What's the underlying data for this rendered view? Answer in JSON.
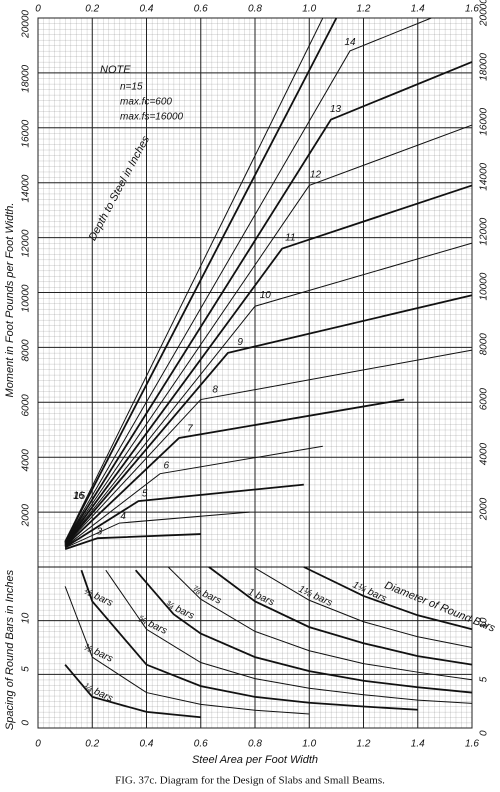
{
  "chart_data": [
    {
      "type": "line",
      "y_label": "Moment in Foot Pounds per Foot Width.",
      "annotation": "Depth to Steel in Inches",
      "note": [
        "NOTE",
        "n=15",
        "max.fc=600",
        "max.fs=16000"
      ],
      "xlim": [
        0,
        1.6
      ],
      "xticks": [
        0,
        0.2,
        0.4,
        0.6,
        0.8,
        {
          "value": 1,
          "label": "1.0"
        },
        1.2,
        1.4,
        1.6
      ],
      "ylim": [
        0,
        20000
      ],
      "yticks": [
        2000,
        4000,
        6000,
        8000,
        10000,
        12000,
        14000,
        16000,
        18000,
        20000
      ],
      "grid": true,
      "series": [
        {
          "name": "3",
          "color": "#111",
          "x": [
            0.1,
            0.22,
            0.6
          ],
          "values": [
            650,
            1050,
            1200
          ]
        },
        {
          "name": "4",
          "color": "#111",
          "x": [
            0.1,
            0.3,
            0.78
          ],
          "values": [
            700,
            1600,
            2000
          ]
        },
        {
          "name": "5",
          "color": "#111",
          "x": [
            0.1,
            0.37,
            0.98
          ],
          "values": [
            720,
            2400,
            3000
          ]
        },
        {
          "name": "6",
          "color": "#111",
          "x": [
            0.1,
            0.45,
            1.05
          ],
          "values": [
            740,
            3400,
            4400
          ]
        },
        {
          "name": "7",
          "color": "#111",
          "x": [
            0.1,
            0.52,
            1.35
          ],
          "values": [
            760,
            4700,
            6100
          ]
        },
        {
          "name": "8",
          "color": "#111",
          "x": [
            0.1,
            0.6,
            1.6
          ],
          "values": [
            780,
            6100,
            7900
          ]
        },
        {
          "name": "9",
          "color": "#111",
          "x": [
            0.1,
            0.7,
            1.6
          ],
          "values": [
            800,
            7800,
            9900
          ]
        },
        {
          "name": "10",
          "color": "#111",
          "x": [
            0.1,
            0.8,
            1.6
          ],
          "values": [
            820,
            9500,
            11800
          ]
        },
        {
          "name": "11",
          "color": "#111",
          "x": [
            0.1,
            0.9,
            1.6
          ],
          "values": [
            840,
            11600,
            13900
          ]
        },
        {
          "name": "12",
          "color": "#111",
          "x": [
            0.1,
            1.0,
            1.6
          ],
          "values": [
            860,
            13900,
            16100
          ]
        },
        {
          "name": "13",
          "color": "#111",
          "x": [
            0.1,
            1.08,
            1.6
          ],
          "values": [
            880,
            16300,
            18400
          ]
        },
        {
          "name": "14",
          "color": "#111",
          "x": [
            0.1,
            1.15,
            1.45
          ],
          "values": [
            900,
            18800,
            20000
          ]
        },
        {
          "name": "15",
          "color": "#111",
          "x": [
            0.1,
            1.1
          ],
          "values": [
            920,
            20000
          ]
        },
        {
          "name": "16",
          "color": "#111",
          "x": [
            0.1,
            1.05
          ],
          "values": [
            940,
            20000
          ]
        }
      ]
    },
    {
      "type": "line",
      "x_label": "Steel Area per Foot Width",
      "y_label": "Spacing of Round Bars in Inches",
      "annotation": "Diameter of Round Bars",
      "xlim": [
        0,
        1.6
      ],
      "xticks": [
        0,
        0.2,
        0.4,
        0.6,
        0.8,
        {
          "value": 1,
          "label": "1.0"
        },
        1.2,
        1.4,
        1.6
      ],
      "ylim": [
        0,
        15
      ],
      "yticks": [
        0,
        5,
        10
      ],
      "grid": true,
      "series": [
        {
          "name": "¼ bars",
          "color": "#111",
          "x": [
            0.1,
            0.2,
            0.4,
            0.6
          ],
          "values": [
            5.9,
            2.9,
            1.5,
            1.0
          ]
        },
        {
          "name": "⅜ bars",
          "color": "#111",
          "x": [
            0.1,
            0.2,
            0.4,
            0.6,
            0.8,
            1.0
          ],
          "values": [
            13.2,
            6.6,
            3.3,
            2.2,
            1.65,
            1.3
          ]
        },
        {
          "name": "½ bars",
          "color": "#111",
          "x": [
            0.16,
            0.2,
            0.4,
            0.6,
            0.8,
            1.0,
            1.2,
            1.4
          ],
          "values": [
            14.7,
            11.8,
            5.9,
            3.9,
            2.9,
            2.35,
            2.0,
            1.7
          ]
        },
        {
          "name": "⅝ bars",
          "color": "#111",
          "x": [
            0.25,
            0.4,
            0.6,
            0.8,
            1.0,
            1.2,
            1.4,
            1.6
          ],
          "values": [
            14.7,
            9.2,
            6.1,
            4.6,
            3.7,
            3.1,
            2.6,
            2.3
          ]
        },
        {
          "name": "¾ bars",
          "color": "#111",
          "x": [
            0.36,
            0.5,
            0.6,
            0.8,
            1.0,
            1.2,
            1.4,
            1.6
          ],
          "values": [
            14.7,
            10.6,
            8.8,
            6.6,
            5.3,
            4.4,
            3.8,
            3.3
          ]
        },
        {
          "name": "⅞ bars",
          "color": "#111",
          "x": [
            0.48,
            0.6,
            0.8,
            1.0,
            1.2,
            1.4,
            1.6
          ],
          "values": [
            15.0,
            12.0,
            9.0,
            7.2,
            6.0,
            5.2,
            4.5
          ]
        },
        {
          "name": "1 bars",
          "color": "#111",
          "x": [
            0.63,
            0.8,
            1.0,
            1.2,
            1.4,
            1.6
          ],
          "values": [
            15.0,
            11.8,
            9.4,
            7.9,
            6.7,
            5.9
          ]
        },
        {
          "name": "1⅛ bars",
          "color": "#111",
          "x": [
            0.8,
            1.0,
            1.2,
            1.4,
            1.6
          ],
          "values": [
            14.9,
            11.9,
            9.9,
            8.5,
            7.5
          ]
        },
        {
          "name": "1¼ bars",
          "color": "#111",
          "x": [
            0.98,
            1.2,
            1.4,
            1.6
          ],
          "values": [
            15.0,
            12.3,
            10.5,
            9.2
          ]
        }
      ]
    }
  ],
  "caption": "FIG. 37c.  Diagram for the Design of Slabs and Small Beams."
}
